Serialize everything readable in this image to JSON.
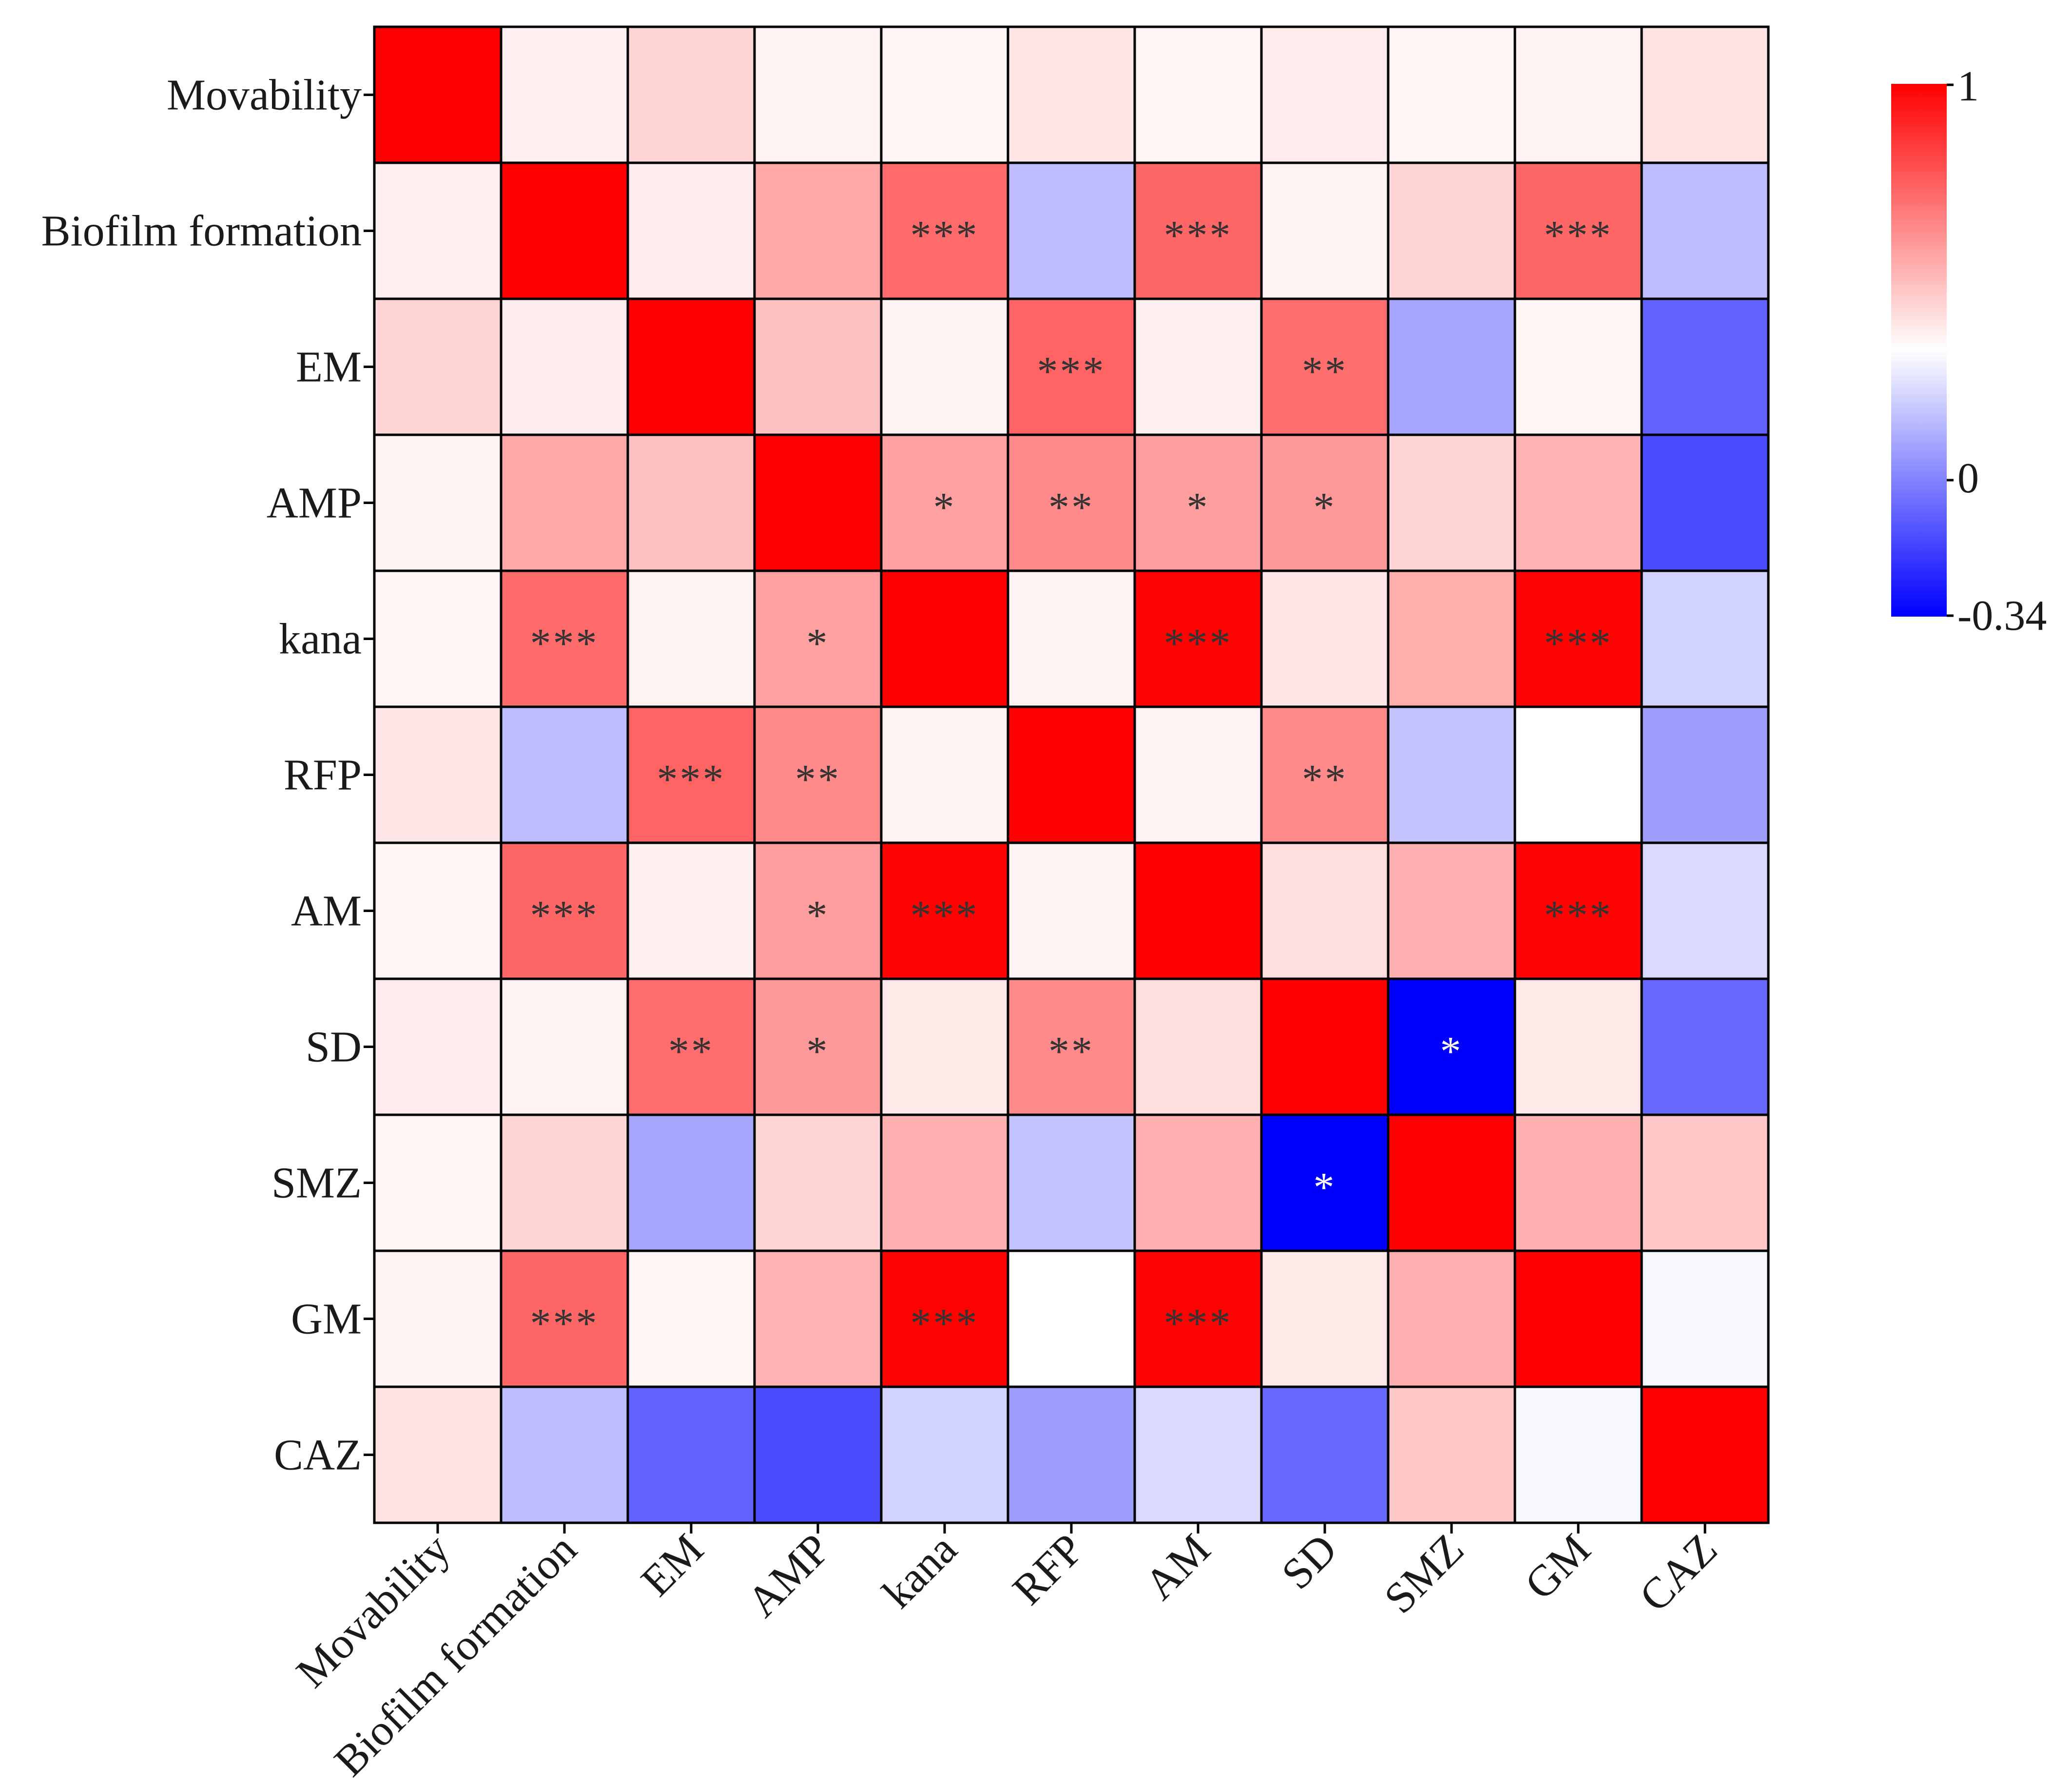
{
  "chart_data": {
    "type": "heatmap",
    "title": "",
    "labels": [
      "Movability",
      "Biofilm formation",
      "EM",
      "AMP",
      "kana",
      "RFP",
      "AM",
      "SD",
      "SMZ",
      "GM",
      "CAZ"
    ],
    "values": [
      [
        1.0,
        0.06,
        0.16,
        0.05,
        0.04,
        0.1,
        0.04,
        0.08,
        0.04,
        0.05,
        0.11
      ],
      [
        0.06,
        1.0,
        0.07,
        0.34,
        0.58,
        -0.09,
        0.6,
        0.05,
        0.16,
        0.6,
        -0.09
      ],
      [
        0.16,
        0.07,
        1.0,
        0.24,
        0.05,
        0.61,
        0.06,
        0.57,
        -0.12,
        0.04,
        -0.21
      ],
      [
        0.05,
        0.34,
        0.24,
        1.0,
        0.37,
        0.46,
        0.38,
        0.4,
        0.16,
        0.3,
        -0.24
      ],
      [
        0.04,
        0.58,
        0.05,
        0.37,
        1.0,
        0.05,
        0.99,
        0.1,
        0.32,
        0.99,
        -0.06
      ],
      [
        0.1,
        -0.09,
        0.61,
        0.46,
        0.05,
        1.0,
        0.05,
        0.46,
        -0.08,
        0.0,
        -0.13
      ],
      [
        0.04,
        0.6,
        0.06,
        0.38,
        0.99,
        0.05,
        1.0,
        0.13,
        0.31,
        0.99,
        -0.05
      ],
      [
        0.08,
        0.05,
        0.57,
        0.4,
        0.09,
        0.46,
        0.13,
        1.0,
        -0.34,
        0.09,
        -0.2
      ],
      [
        0.04,
        0.16,
        -0.12,
        0.16,
        0.31,
        -0.08,
        0.31,
        -0.34,
        1.0,
        0.31,
        0.22
      ],
      [
        0.05,
        0.6,
        0.04,
        0.3,
        0.99,
        0.0,
        0.99,
        0.09,
        0.31,
        1.0,
        -0.01
      ],
      [
        0.11,
        -0.09,
        -0.21,
        -0.24,
        -0.06,
        -0.13,
        -0.05,
        -0.2,
        0.22,
        -0.01,
        1.0
      ]
    ],
    "significance": [
      [
        "",
        "",
        "",
        "",
        "",
        "",
        "",
        "",
        "",
        "",
        ""
      ],
      [
        "",
        "",
        "",
        "",
        "***",
        "",
        "***",
        "",
        "",
        "***",
        ""
      ],
      [
        "",
        "",
        "",
        "",
        "",
        "***",
        "",
        "**",
        "",
        "",
        ""
      ],
      [
        "",
        "",
        "",
        "",
        "*",
        "**",
        "*",
        "*",
        "",
        "",
        ""
      ],
      [
        "",
        "***",
        "",
        "*",
        "",
        "",
        "***",
        "",
        "",
        "***",
        ""
      ],
      [
        "",
        "",
        "***",
        "**",
        "",
        "",
        "",
        "**",
        "",
        "",
        ""
      ],
      [
        "",
        "***",
        "",
        "*",
        "***",
        "",
        "",
        "",
        "",
        "***",
        ""
      ],
      [
        "",
        "",
        "**",
        "*",
        "",
        "**",
        "",
        "",
        "*",
        "",
        ""
      ],
      [
        "",
        "",
        "",
        "",
        "",
        "",
        "",
        "*",
        "",
        "",
        ""
      ],
      [
        "",
        "***",
        "",
        "",
        "***",
        "",
        "***",
        "",
        "",
        "",
        ""
      ],
      [
        "",
        "",
        "",
        "",
        "",
        "",
        "",
        "",
        "",
        "",
        ""
      ]
    ],
    "colorbar": {
      "min": -0.34,
      "max": 1,
      "ticks": [
        "1",
        "0",
        "-0.34"
      ],
      "tick_values": [
        1,
        0,
        -0.34
      ],
      "colors": {
        "negative": "#0000ff",
        "neutral": "#ffffff",
        "positive": "#ff0000"
      }
    },
    "legend_position": "right"
  }
}
